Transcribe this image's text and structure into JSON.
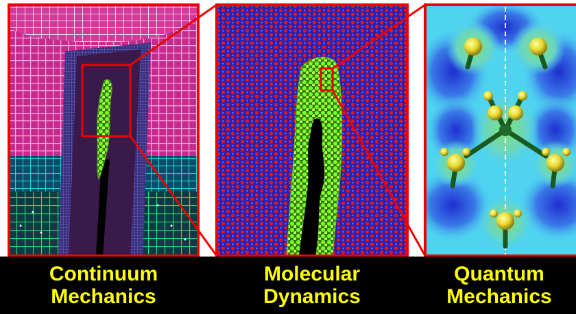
{
  "panels": [
    {
      "id": "continuum",
      "caption_line1": "Continuum",
      "caption_line2": "Mechanics"
    },
    {
      "id": "molecular",
      "caption_line1": "Molecular",
      "caption_line2": "Dynamics"
    },
    {
      "id": "quantum",
      "caption_line1": "Quantum",
      "caption_line2": "Mechanics"
    }
  ],
  "colors": {
    "frame": "#ee0000",
    "caption_text": "#ffff00",
    "caption_bg": "#000000",
    "mesh_pink": "#f07fc8",
    "mesh_cyan": "#2ad0d0",
    "mesh_green": "#2ee07a",
    "crack_green": "#66ff22",
    "atom_red": "#e01818",
    "atom_blue": "#2a1fb0",
    "qm_cyan": "#4fd4f0",
    "qm_yellow": "#f0e040"
  }
}
